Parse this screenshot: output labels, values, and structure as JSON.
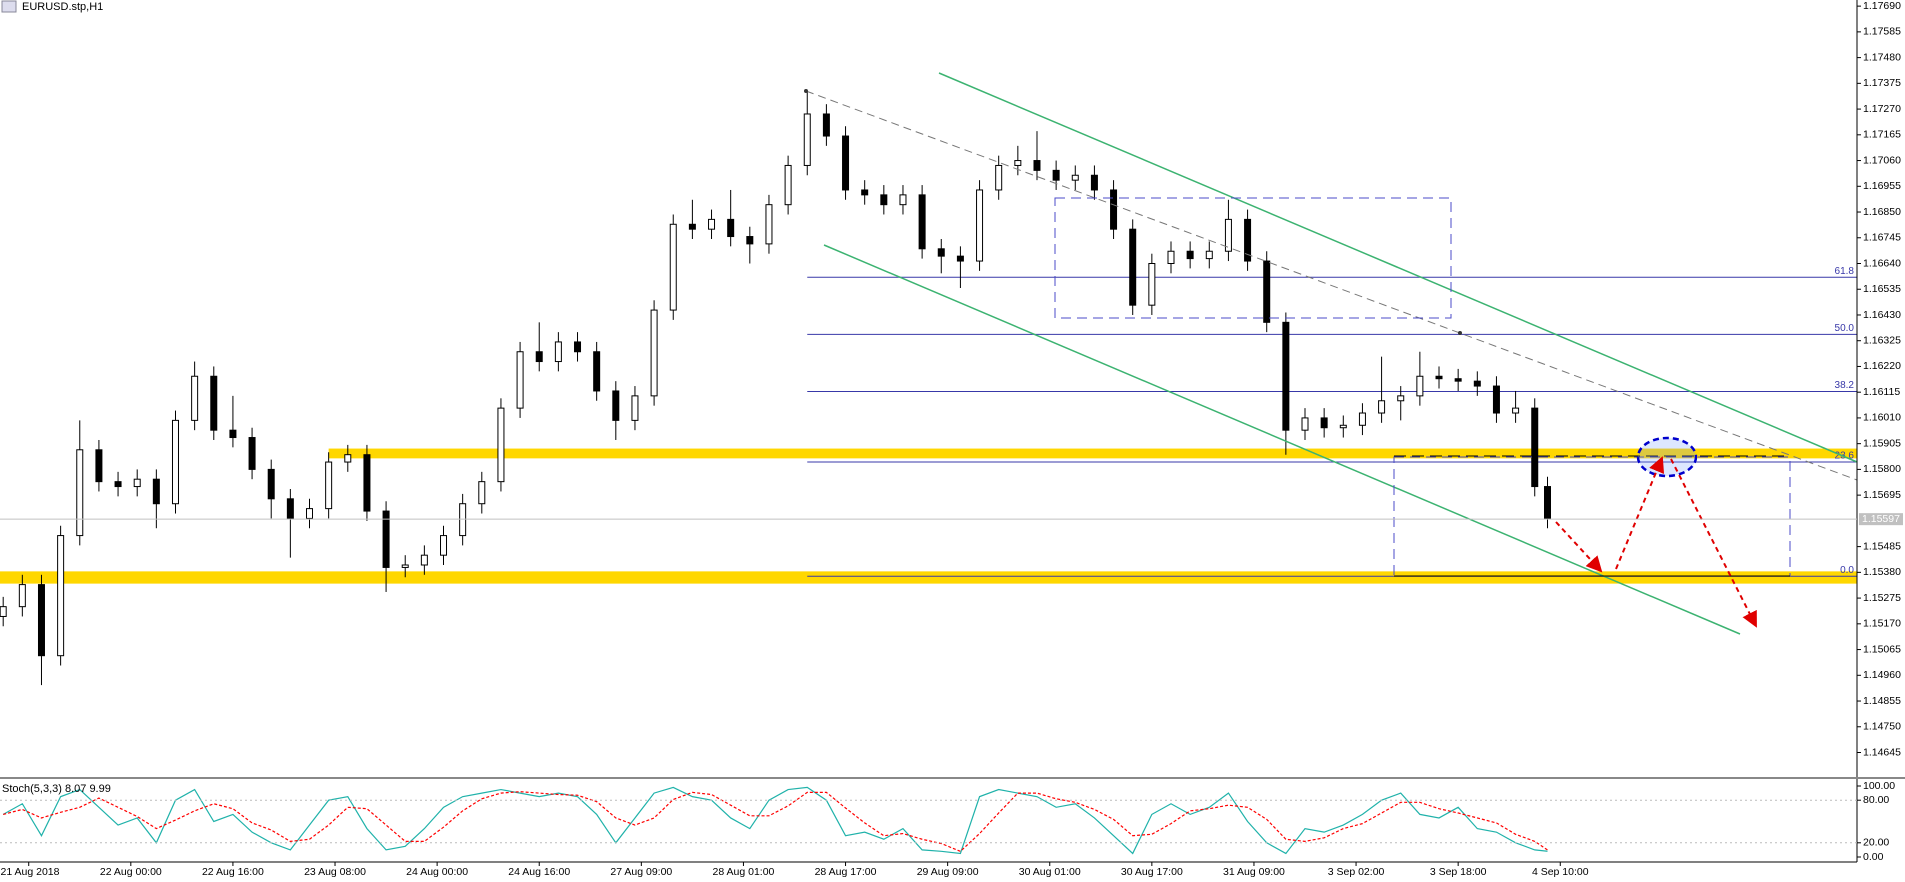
{
  "header": {
    "symbol": "EURUSD.stp,H1"
  },
  "chart_data": [
    {
      "type": "candlestick",
      "x": [
        0,
        3,
        6,
        9,
        12,
        15,
        18,
        21,
        24,
        27,
        30,
        33,
        36,
        39,
        42,
        45,
        48,
        51,
        54,
        57,
        60,
        63,
        66,
        69,
        72,
        75,
        78,
        81,
        84,
        87,
        90,
        93,
        96,
        99,
        102,
        105,
        108,
        111,
        114,
        117,
        120,
        123,
        126,
        129,
        132,
        135,
        138,
        141,
        144,
        147,
        150,
        153,
        156,
        159,
        162,
        165,
        168,
        171,
        174,
        177,
        180,
        183,
        186,
        189,
        192,
        195,
        198,
        201,
        204,
        207,
        210,
        213,
        216,
        219,
        222,
        225,
        228,
        231,
        234,
        237,
        240,
        242
      ],
      "open": [
        1.152,
        1.1524,
        1.1533,
        1.1504,
        1.1553,
        1.1588,
        1.1575,
        1.1573,
        1.1576,
        1.1566,
        1.16,
        1.1618,
        1.1596,
        1.1593,
        1.158,
        1.1568,
        1.156,
        1.1564,
        1.1583,
        1.1586,
        1.1563,
        1.154,
        1.1541,
        1.1545,
        1.1553,
        1.1566,
        1.1575,
        1.1605,
        1.1628,
        1.1624,
        1.1632,
        1.1628,
        1.1612,
        1.16,
        1.161,
        1.1645,
        1.168,
        1.1678,
        1.1682,
        1.1675,
        1.1672,
        1.1688,
        1.1704,
        1.1725,
        1.1716,
        1.1694,
        1.1692,
        1.1688,
        1.1692,
        1.167,
        1.1667,
        1.1665,
        1.1694,
        1.1704,
        1.1706,
        1.1702,
        1.1698,
        1.17,
        1.1694,
        1.1678,
        1.1647,
        1.1664,
        1.1669,
        1.1666,
        1.1669,
        1.1682,
        1.1665,
        1.164,
        1.1596,
        1.1601,
        1.1597,
        1.1598,
        1.1603,
        1.1608,
        1.161,
        1.1618,
        1.1617,
        1.1616,
        1.1614,
        1.1603,
        1.1605,
        1.1573
      ],
      "high": [
        1.1528,
        1.1537,
        1.1537,
        1.1557,
        1.16,
        1.1592,
        1.1579,
        1.158,
        1.158,
        1.1604,
        1.1624,
        1.1622,
        1.161,
        1.1597,
        1.1584,
        1.1572,
        1.1568,
        1.1587,
        1.159,
        1.159,
        1.1567,
        1.1545,
        1.1549,
        1.1557,
        1.157,
        1.1579,
        1.1609,
        1.1632,
        1.164,
        1.1636,
        1.1636,
        1.1632,
        1.1616,
        1.1614,
        1.1649,
        1.1684,
        1.169,
        1.1686,
        1.1694,
        1.1679,
        1.1692,
        1.1708,
        1.1734,
        1.1729,
        1.172,
        1.1698,
        1.1696,
        1.1696,
        1.1696,
        1.1674,
        1.1671,
        1.1698,
        1.1708,
        1.1712,
        1.1718,
        1.1706,
        1.1704,
        1.1704,
        1.1698,
        1.1682,
        1.1668,
        1.1673,
        1.1673,
        1.1673,
        1.169,
        1.1686,
        1.1669,
        1.1644,
        1.1605,
        1.1605,
        1.1602,
        1.1607,
        1.1626,
        1.1614,
        1.1628,
        1.1622,
        1.1621,
        1.162,
        1.1618,
        1.1612,
        1.1609,
        1.1577
      ],
      "low": [
        1.1516,
        1.152,
        1.1492,
        1.15,
        1.1549,
        1.1571,
        1.1569,
        1.1569,
        1.1556,
        1.1562,
        1.1596,
        1.1592,
        1.1589,
        1.1576,
        1.156,
        1.1544,
        1.1556,
        1.156,
        1.1579,
        1.1559,
        1.153,
        1.1536,
        1.1537,
        1.1541,
        1.1549,
        1.1562,
        1.1571,
        1.1601,
        1.162,
        1.162,
        1.1624,
        1.1608,
        1.1592,
        1.1596,
        1.1606,
        1.1641,
        1.1674,
        1.1674,
        1.1671,
        1.1664,
        1.1668,
        1.1684,
        1.17,
        1.1712,
        1.169,
        1.1688,
        1.1684,
        1.1684,
        1.1666,
        1.166,
        1.1654,
        1.1661,
        1.169,
        1.17,
        1.1698,
        1.1694,
        1.1694,
        1.169,
        1.1674,
        1.1643,
        1.1643,
        1.166,
        1.1662,
        1.1662,
        1.1665,
        1.1661,
        1.1636,
        1.1586,
        1.1592,
        1.1593,
        1.1593,
        1.1594,
        1.1599,
        1.16,
        1.1606,
        1.1613,
        1.1612,
        1.161,
        1.1599,
        1.1599,
        1.1569,
        1.1556
      ],
      "close": [
        1.1524,
        1.1533,
        1.1504,
        1.1553,
        1.1588,
        1.1575,
        1.1573,
        1.1576,
        1.1566,
        1.16,
        1.1618,
        1.1596,
        1.1593,
        1.158,
        1.1568,
        1.156,
        1.1564,
        1.1583,
        1.1586,
        1.1563,
        1.154,
        1.1541,
        1.1545,
        1.1553,
        1.1566,
        1.1575,
        1.1605,
        1.1628,
        1.1624,
        1.1632,
        1.1628,
        1.1612,
        1.16,
        1.161,
        1.1645,
        1.168,
        1.1678,
        1.1682,
        1.1675,
        1.1672,
        1.1688,
        1.1704,
        1.1725,
        1.1716,
        1.1694,
        1.1692,
        1.1688,
        1.1692,
        1.167,
        1.1667,
        1.1665,
        1.1694,
        1.1704,
        1.1706,
        1.1702,
        1.1698,
        1.17,
        1.1694,
        1.1678,
        1.1647,
        1.1664,
        1.1669,
        1.1666,
        1.1669,
        1.1682,
        1.1665,
        1.164,
        1.1596,
        1.1601,
        1.1597,
        1.1598,
        1.1603,
        1.1608,
        1.161,
        1.1618,
        1.1617,
        1.1616,
        1.1614,
        1.1603,
        1.1605,
        1.1573,
        1.156
      ],
      "up_color": "#ffffff",
      "down_color": "#000000",
      "xlim": [
        -0.5,
        290.5
      ],
      "ylim": [
        1.14541,
        1.17715
      ],
      "xticks": [
        {
          "value": 4,
          "label": "21 Aug 2018"
        },
        {
          "value": 20,
          "label": "22 Aug 00:00"
        },
        {
          "value": 36,
          "label": "22 Aug 16:00"
        },
        {
          "value": 52,
          "label": "23 Aug 08:00"
        },
        {
          "value": 68,
          "label": "24 Aug 00:00"
        },
        {
          "value": 84,
          "label": "24 Aug 16:00"
        },
        {
          "value": 100,
          "label": "27 Aug 09:00"
        },
        {
          "value": 116,
          "label": "28 Aug 01:00"
        },
        {
          "value": 132,
          "label": "28 Aug 17:00"
        },
        {
          "value": 148,
          "label": "29 Aug 09:00"
        },
        {
          "value": 164,
          "label": "30 Aug 01:00"
        },
        {
          "value": 180,
          "label": "30 Aug 17:00"
        },
        {
          "value": 196,
          "label": "31 Aug 09:00"
        },
        {
          "value": 212,
          "label": "3 Sep 02:00"
        },
        {
          "value": 228,
          "label": "3 Sep 18:00"
        },
        {
          "value": 244,
          "label": "4 Sep 10:00"
        }
      ],
      "yticks": [
        {
          "value": 1.1769,
          "label": "1.17690"
        },
        1.17585,
        {
          "value": 1.1748,
          "label": "1.17480"
        },
        1.17375,
        {
          "value": 1.1727,
          "label": "1.17270"
        },
        1.17165,
        {
          "value": 1.1706,
          "label": "1.17060"
        },
        1.16955,
        {
          "value": 1.1685,
          "label": "1.16850"
        },
        1.16745,
        {
          "value": 1.1664,
          "label": "1.16640"
        },
        1.16535,
        {
          "value": 1.1643,
          "label": "1.16430"
        },
        1.16325,
        {
          "value": 1.1622,
          "label": "1.16220"
        },
        1.16115,
        {
          "value": 1.1601,
          "label": "1.16010"
        },
        1.15905,
        {
          "value": 1.158,
          "label": "1.15800"
        },
        1.15695,
        1.15485,
        {
          "value": 1.1538,
          "label": "1.15380"
        },
        1.15275,
        {
          "value": 1.1517,
          "label": "1.15170"
        },
        1.15065,
        {
          "value": 1.1496,
          "label": "1.14960"
        },
        1.14855,
        {
          "value": 1.1475,
          "label": "1.14750"
        },
        1.14645
      ],
      "current_price": 1.15597,
      "fibo_start": 126,
      "fibo_levels": [
        {
          "value": 1.16584,
          "label": "61.8"
        },
        {
          "value": 1.16351,
          "label": "50.0"
        },
        {
          "value": 1.16118,
          "label": "38.2"
        },
        {
          "value": 1.1583,
          "label": "23.6"
        },
        {
          "value": 1.15364,
          "label": "0.0"
        }
      ],
      "zones": [
        {
          "start": 51,
          "top": 1.15885,
          "bottom": 1.15845
        },
        {
          "start": -0.5,
          "top": 1.15384,
          "bottom": 1.15334
        }
      ],
      "zone_color": "#ffd700"
    },
    {
      "type": "line",
      "title": "Stoch(5,3,3) 8.07 9.99",
      "x": [
        0,
        3,
        6,
        9,
        12,
        15,
        18,
        21,
        24,
        27,
        30,
        33,
        36,
        39,
        42,
        45,
        48,
        51,
        54,
        57,
        60,
        63,
        66,
        69,
        72,
        75,
        78,
        81,
        84,
        87,
        90,
        93,
        96,
        99,
        102,
        105,
        108,
        111,
        114,
        117,
        120,
        123,
        126,
        129,
        132,
        135,
        138,
        141,
        144,
        147,
        150,
        153,
        156,
        159,
        162,
        165,
        168,
        171,
        174,
        177,
        180,
        183,
        186,
        189,
        192,
        195,
        198,
        201,
        204,
        207,
        210,
        213,
        216,
        219,
        222,
        225,
        228,
        231,
        234,
        237,
        240,
        242
      ],
      "series": [
        {
          "color": "#20b2aa",
          "values": [
            60,
            75,
            30,
            85,
            95,
            70,
            45,
            55,
            20,
            80,
            95,
            50,
            60,
            35,
            20,
            10,
            45,
            80,
            85,
            40,
            10,
            15,
            40,
            70,
            85,
            90,
            95,
            90,
            85,
            90,
            85,
            60,
            20,
            55,
            90,
            98,
            85,
            80,
            55,
            40,
            80,
            95,
            98,
            80,
            30,
            35,
            25,
            40,
            10,
            8,
            5,
            85,
            95,
            90,
            85,
            70,
            75,
            55,
            30,
            5,
            60,
            75,
            60,
            70,
            90,
            50,
            20,
            5,
            40,
            35,
            45,
            60,
            80,
            90,
            60,
            55,
            70,
            40,
            35,
            20,
            10,
            8.07
          ]
        },
        {
          "color": "#ff0000",
          "values": [
            60,
            67,
            55,
            63,
            70,
            83,
            70,
            57,
            40,
            52,
            65,
            75,
            68,
            48,
            38,
            22,
            25,
            45,
            70,
            68,
            45,
            22,
            22,
            42,
            65,
            82,
            90,
            92,
            90,
            88,
            87,
            78,
            55,
            45,
            55,
            81,
            91,
            88,
            73,
            58,
            58,
            72,
            91,
            91,
            69,
            48,
            30,
            33,
            25,
            19,
            8,
            33,
            62,
            90,
            90,
            82,
            77,
            67,
            53,
            30,
            32,
            47,
            65,
            68,
            73,
            70,
            53,
            25,
            22,
            27,
            40,
            47,
            62,
            77,
            77,
            68,
            62,
            55,
            48,
            32,
            22,
            9.99
          ]
        }
      ],
      "ylim": [
        0,
        100
      ],
      "yticks": [
        {
          "value": 100,
          "label": "100.00"
        },
        {
          "value": 80,
          "label": "80.00"
        },
        {
          "value": 20,
          "label": "20.00"
        },
        {
          "value": 0,
          "label": "0.00"
        }
      ]
    }
  ]
}
